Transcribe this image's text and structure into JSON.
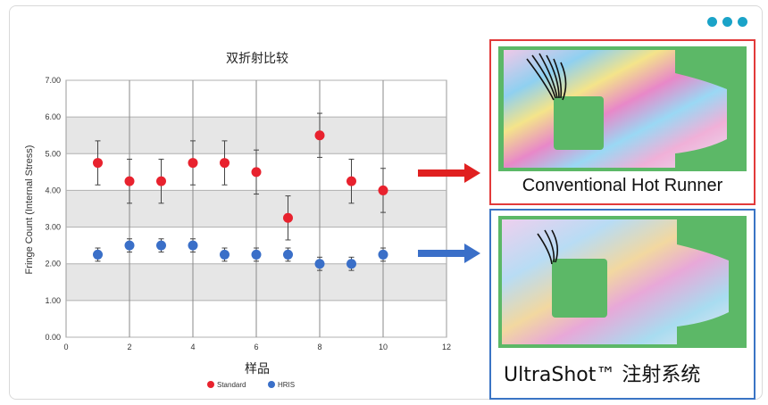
{
  "menu": {
    "icon": "more-dots-icon",
    "color": "#1aa3c8"
  },
  "chart_data": {
    "type": "scatter",
    "title": "双折射比较",
    "xlabel": "样品",
    "ylabel": "Fringe Count (Internal Stress)",
    "xlim": [
      0,
      12
    ],
    "ylim": [
      0,
      7
    ],
    "xticks": [
      "0",
      "2",
      "4",
      "6",
      "8",
      "10",
      "12"
    ],
    "yticks": [
      "0.00",
      "1.00",
      "2.00",
      "3.00",
      "4.00",
      "5.00",
      "6.00",
      "7.00"
    ],
    "grid": true,
    "legend_position": "bottom",
    "x": [
      1,
      2,
      3,
      4,
      5,
      6,
      7,
      8,
      9,
      10
    ],
    "series": [
      {
        "name": "Standard",
        "color": "#e8222e",
        "values": [
          4.75,
          4.25,
          4.25,
          4.75,
          4.75,
          4.5,
          3.25,
          5.5,
          4.25,
          4.0
        ],
        "error": [
          0.6,
          0.6,
          0.6,
          0.6,
          0.6,
          0.6,
          0.6,
          0.6,
          0.6,
          0.6
        ]
      },
      {
        "name": "HRIS",
        "color": "#3a6fc8",
        "values": [
          2.25,
          2.5,
          2.5,
          2.5,
          2.25,
          2.25,
          2.25,
          2.0,
          2.0,
          2.25
        ],
        "error": [
          0.18,
          0.18,
          0.18,
          0.18,
          0.18,
          0.18,
          0.18,
          0.18,
          0.18,
          0.18
        ]
      }
    ]
  },
  "panels": {
    "top": {
      "label": "Conventional Hot Runner",
      "border_color": "#e23a3a",
      "arrow_color": "#e02020"
    },
    "bottom": {
      "label": "UltraShot™ 注射系统",
      "border_color": "#3a74c4",
      "arrow_color": "#3a6fc8"
    }
  }
}
